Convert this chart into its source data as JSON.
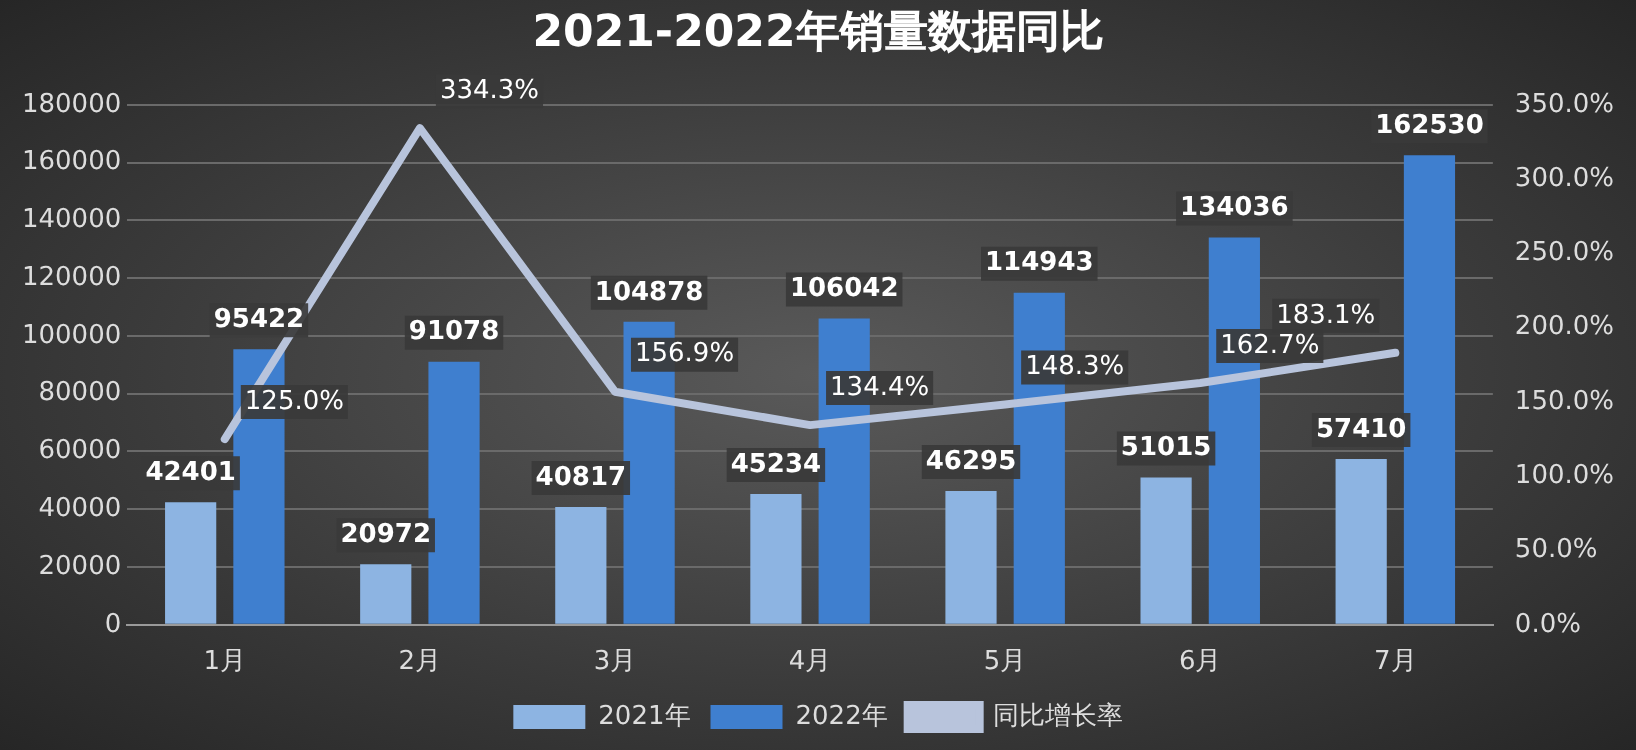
{
  "chart_data": {
    "type": "bar",
    "title": "2021-2022年销量数据同比",
    "categories": [
      "1月",
      "2月",
      "3月",
      "4月",
      "5月",
      "6月",
      "7月"
    ],
    "series": [
      {
        "name": "2021年",
        "color": "#8db4e2",
        "values": [
          42401,
          20972,
          40817,
          45234,
          46295,
          51015,
          57410
        ],
        "value_labels": [
          "42401",
          "20972",
          "40817",
          "45234",
          "46295",
          "51015",
          "57410"
        ]
      },
      {
        "name": "2022年",
        "color": "#3f7fcf",
        "values": [
          95422,
          91078,
          104878,
          106042,
          114943,
          134036,
          162530
        ],
        "value_labels": [
          "95422",
          "91078",
          "104878",
          "106042",
          "114943",
          "134036",
          "162530"
        ]
      },
      {
        "name": "同比增长率",
        "type": "line",
        "axis": "y2",
        "color": "#b8c4dc",
        "values": [
          125.0,
          334.3,
          156.9,
          134.4,
          148.3,
          162.7,
          183.1
        ],
        "value_labels": [
          "125.0%",
          "334.3%",
          "156.9%",
          "134.4%",
          "148.3%",
          "162.7%",
          "183.1%"
        ]
      }
    ],
    "ylim": [
      0,
      180000
    ],
    "yticks": [
      0,
      20000,
      40000,
      60000,
      80000,
      100000,
      120000,
      140000,
      160000,
      180000
    ],
    "y2lim": [
      0,
      350
    ],
    "y2ticks": [
      {
        "value": 0,
        "label": "0.0%"
      },
      {
        "value": 50,
        "label": "50.0%"
      },
      {
        "value": 100,
        "label": "100.0%"
      },
      {
        "value": 150,
        "label": "150.0%"
      },
      {
        "value": 200,
        "label": "200.0%"
      },
      {
        "value": 250,
        "label": "250.0%"
      },
      {
        "value": 300,
        "label": "300.0%"
      },
      {
        "value": 350,
        "label": "350.0%"
      }
    ],
    "grid": "y",
    "legend": "bottom",
    "marker": "none",
    "line_style": "solid"
  }
}
